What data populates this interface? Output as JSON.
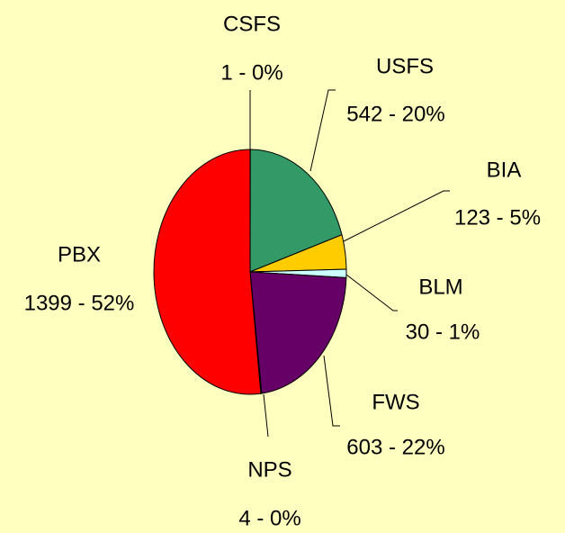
{
  "chart_data": {
    "type": "pie",
    "categories": [
      "CSFS",
      "USFS",
      "BIA",
      "BLM",
      "FWS",
      "NPS",
      "PBX"
    ],
    "values": [
      1,
      542,
      123,
      30,
      603,
      4,
      1399
    ],
    "value_labels": [
      "1 - 0%",
      "542 - 20%",
      "123 - 5%",
      "30 - 1%",
      "603 - 22%",
      "4 - 0%",
      "1399 - 52%"
    ],
    "colors": [
      "#ffffff",
      "#339966",
      "#ffcc00",
      "#ccffff",
      "#660066",
      "#ccffff",
      "#ff0000"
    ]
  }
}
